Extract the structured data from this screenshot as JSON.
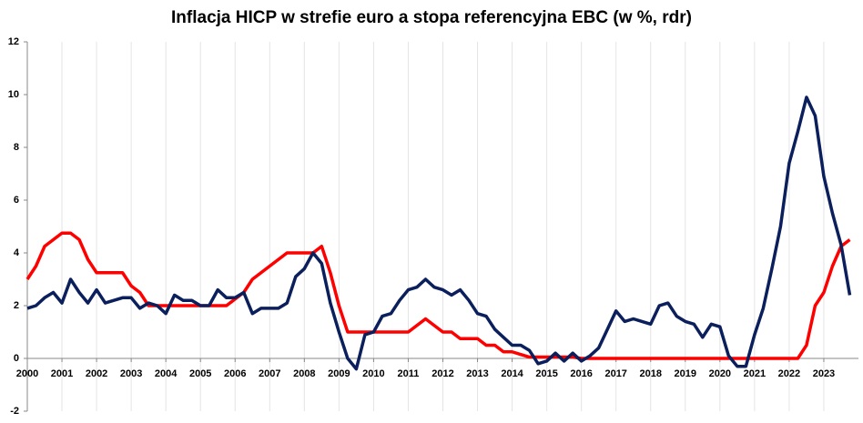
{
  "chart_data": {
    "type": "line",
    "title": "Inflacja HICP w strefie euro a stopa referencyjna EBC (w %, rdr)",
    "x": [
      2000,
      2000.25,
      2000.5,
      2000.75,
      2001,
      2001.25,
      2001.5,
      2001.75,
      2002,
      2002.25,
      2002.5,
      2002.75,
      2003,
      2003.25,
      2003.5,
      2003.75,
      2004,
      2004.25,
      2004.5,
      2004.75,
      2005,
      2005.25,
      2005.5,
      2005.75,
      2006,
      2006.25,
      2006.5,
      2006.75,
      2007,
      2007.25,
      2007.5,
      2007.75,
      2008,
      2008.25,
      2008.5,
      2008.75,
      2009,
      2009.25,
      2009.5,
      2009.75,
      2010,
      2010.25,
      2010.5,
      2010.75,
      2011,
      2011.25,
      2011.5,
      2011.75,
      2012,
      2012.25,
      2012.5,
      2012.75,
      2013,
      2013.25,
      2013.5,
      2013.75,
      2014,
      2014.25,
      2014.5,
      2014.75,
      2015,
      2015.25,
      2015.5,
      2015.75,
      2016,
      2016.25,
      2016.5,
      2016.75,
      2017,
      2017.25,
      2017.5,
      2017.75,
      2018,
      2018.25,
      2018.5,
      2018.75,
      2019,
      2019.25,
      2019.5,
      2019.75,
      2020,
      2020.25,
      2020.5,
      2020.75,
      2021,
      2021.25,
      2021.5,
      2021.75,
      2022,
      2022.25,
      2022.5,
      2022.75,
      2023,
      2023.25,
      2023.5,
      2023.75
    ],
    "series": [
      {
        "name": "HICP",
        "color": "#0a1f5c",
        "values": [
          1.9,
          2.0,
          2.3,
          2.5,
          2.1,
          3.0,
          2.5,
          2.1,
          2.6,
          2.1,
          2.2,
          2.3,
          2.3,
          1.9,
          2.1,
          2.0,
          1.7,
          2.4,
          2.2,
          2.2,
          2.0,
          2.0,
          2.6,
          2.3,
          2.3,
          2.5,
          1.7,
          1.9,
          1.9,
          1.9,
          2.1,
          3.1,
          3.4,
          4.0,
          3.6,
          2.1,
          1.0,
          0.0,
          -0.4,
          0.9,
          1.0,
          1.6,
          1.7,
          2.2,
          2.6,
          2.7,
          3.0,
          2.7,
          2.6,
          2.4,
          2.6,
          2.2,
          1.7,
          1.6,
          1.1,
          0.8,
          0.5,
          0.5,
          0.3,
          -0.2,
          -0.1,
          0.2,
          -0.1,
          0.2,
          -0.1,
          0.1,
          0.4,
          1.1,
          1.8,
          1.4,
          1.5,
          1.4,
          1.3,
          2.0,
          2.1,
          1.6,
          1.4,
          1.3,
          0.8,
          1.3,
          1.2,
          0.1,
          -0.3,
          -0.3,
          0.9,
          1.9,
          3.4,
          5.0,
          7.4,
          8.6,
          9.9,
          9.2,
          6.9,
          5.5,
          4.3,
          2.4
        ]
      },
      {
        "name": "Stopa referencyjna EBC",
        "color": "#ff0000",
        "values": [
          3.0,
          3.5,
          4.25,
          4.5,
          4.75,
          4.75,
          4.5,
          3.75,
          3.25,
          3.25,
          3.25,
          3.25,
          2.75,
          2.5,
          2.0,
          2.0,
          2,
          2,
          2,
          2,
          2,
          2,
          2,
          2,
          2.25,
          2.5,
          3.0,
          3.25,
          3.5,
          3.75,
          4,
          4,
          4,
          4,
          4.25,
          3.25,
          2.0,
          1.0,
          1,
          1,
          1,
          1,
          1,
          1,
          1,
          1.25,
          1.5,
          1.25,
          1,
          1,
          0.75,
          0.75,
          0.75,
          0.5,
          0.5,
          0.25,
          0.25,
          0.15,
          0.05,
          0.05,
          0.05,
          0.05,
          0.05,
          0.05,
          0,
          0,
          0,
          0,
          0,
          0,
          0,
          0,
          0,
          0,
          0,
          0,
          0,
          0,
          0,
          0,
          0,
          0,
          0,
          0,
          0,
          0,
          0,
          0,
          0,
          0,
          0.5,
          2.0,
          2.5,
          3.5,
          4.25,
          4.5
        ]
      }
    ],
    "xlim": [
      2000,
      2024
    ],
    "xticks": [
      2000,
      2001,
      2002,
      2003,
      2004,
      2005,
      2006,
      2007,
      2008,
      2009,
      2010,
      2011,
      2012,
      2013,
      2014,
      2015,
      2016,
      2017,
      2018,
      2019,
      2020,
      2021,
      2022,
      2023
    ],
    "ylim": [
      -2,
      12
    ],
    "yticks": [
      -2,
      0,
      2,
      4,
      6,
      8,
      10,
      12
    ],
    "grid": "x"
  }
}
